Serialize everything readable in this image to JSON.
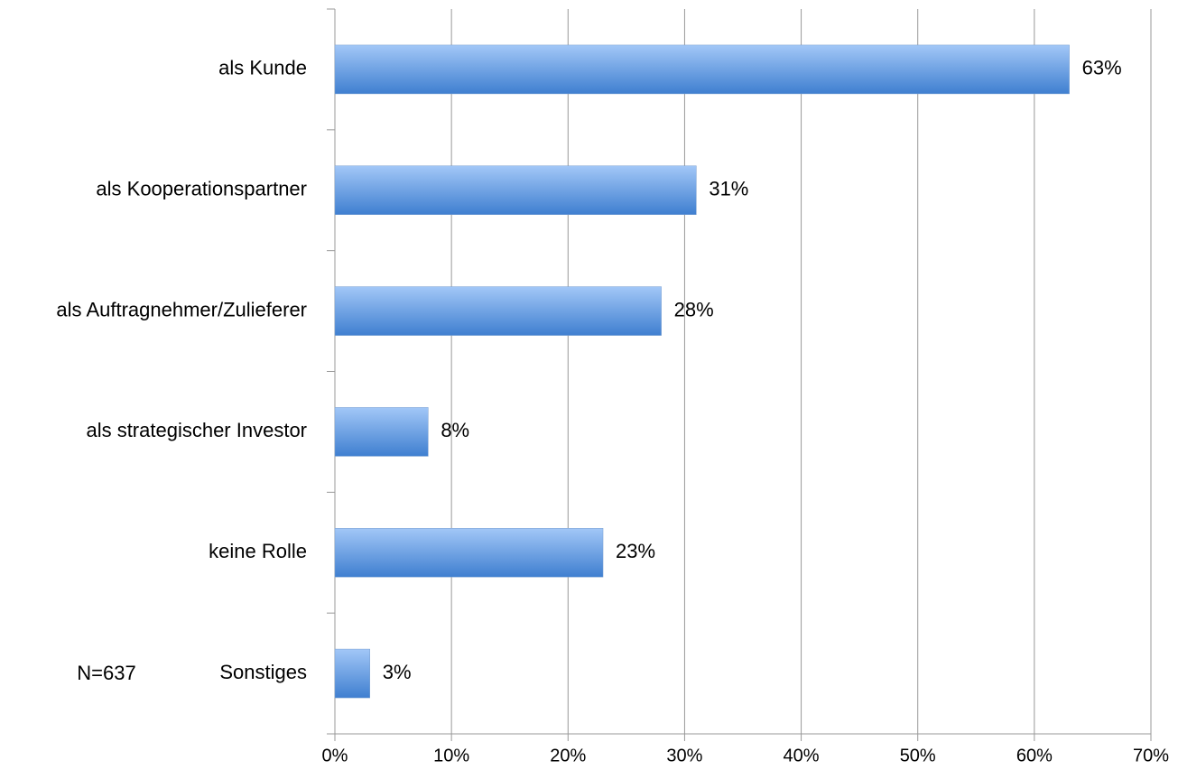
{
  "chart_data": {
    "type": "bar",
    "orientation": "horizontal",
    "categories": [
      "als Kunde",
      "als Kooperationspartner",
      "als Auftragnehmer/Zulieferer",
      "als strategischer Investor",
      "keine Rolle",
      "Sonstiges"
    ],
    "values": [
      63,
      31,
      28,
      8,
      23,
      3
    ],
    "value_labels": [
      "63%",
      "31%",
      "28%",
      "8%",
      "23%",
      "3%"
    ],
    "color": "#3f7fd0",
    "xlim": [
      0,
      70
    ],
    "xticks": [
      {
        "value": 0,
        "label": "0%"
      },
      {
        "value": 10,
        "label": "10%"
      },
      {
        "value": 20,
        "label": "20%"
      },
      {
        "value": 30,
        "label": "30%"
      },
      {
        "value": 40,
        "label": "40%"
      },
      {
        "value": 50,
        "label": "50%"
      },
      {
        "value": 60,
        "label": "60%"
      },
      {
        "value": 70,
        "label": "70%"
      }
    ],
    "grid": true,
    "annotation": "N=637"
  }
}
